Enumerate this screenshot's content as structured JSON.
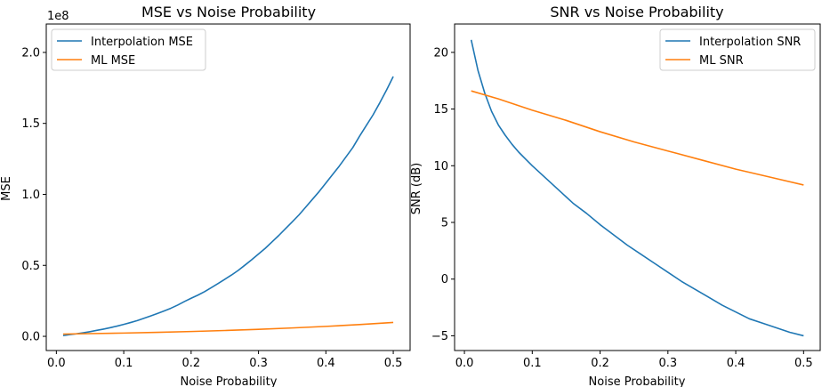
{
  "colors": {
    "series1": "#1f77b4",
    "series2": "#ff7f0e"
  },
  "chart_data": [
    {
      "type": "line",
      "title": "MSE vs Noise Probability",
      "xlabel": "Noise Probability",
      "ylabel": "MSE",
      "offset_label": "1e8",
      "xlim": [
        -0.015,
        0.525
      ],
      "ylim": [
        -0.1,
        2.2
      ],
      "xticks": [
        0.0,
        0.1,
        0.2,
        0.3,
        0.4,
        0.5
      ],
      "xtick_labels": [
        "0.0",
        "0.1",
        "0.2",
        "0.3",
        "0.4",
        "0.5"
      ],
      "yticks": [
        0.0,
        0.5,
        1.0,
        1.5,
        2.0
      ],
      "ytick_labels": [
        "0.0",
        "0.5",
        "1.0",
        "1.5",
        "2.0"
      ],
      "legend_position": "upper-left",
      "grid": false,
      "series": [
        {
          "name": "Interpolation MSE",
          "color": "#1f77b4",
          "x": [
            0.01,
            0.02,
            0.03,
            0.04,
            0.05,
            0.06,
            0.07,
            0.08,
            0.09,
            0.1,
            0.11,
            0.12,
            0.13,
            0.14,
            0.15,
            0.16,
            0.17,
            0.18,
            0.19,
            0.2,
            0.21,
            0.22,
            0.23,
            0.24,
            0.25,
            0.26,
            0.27,
            0.28,
            0.29,
            0.3,
            0.31,
            0.32,
            0.33,
            0.34,
            0.35,
            0.36,
            0.37,
            0.38,
            0.39,
            0.4,
            0.41,
            0.42,
            0.43,
            0.44,
            0.45,
            0.46,
            0.47,
            0.48,
            0.49,
            0.5
          ],
          "values": [
            0.005,
            0.012,
            0.018,
            0.025,
            0.033,
            0.042,
            0.051,
            0.061,
            0.072,
            0.084,
            0.097,
            0.111,
            0.127,
            0.144,
            0.161,
            0.179,
            0.198,
            0.22,
            0.245,
            0.268,
            0.29,
            0.315,
            0.343,
            0.372,
            0.402,
            0.432,
            0.465,
            0.502,
            0.54,
            0.58,
            0.62,
            0.665,
            0.71,
            0.758,
            0.806,
            0.855,
            0.91,
            0.965,
            1.02,
            1.08,
            1.14,
            1.2,
            1.265,
            1.33,
            1.41,
            1.485,
            1.56,
            1.645,
            1.735,
            1.83
          ]
        },
        {
          "name": "ML MSE",
          "color": "#ff7f0e",
          "x": [
            0.01,
            0.05,
            0.1,
            0.15,
            0.2,
            0.25,
            0.3,
            0.35,
            0.4,
            0.45,
            0.5
          ],
          "values": [
            0.016,
            0.019,
            0.023,
            0.028,
            0.034,
            0.041,
            0.049,
            0.059,
            0.07,
            0.083,
            0.098
          ]
        }
      ]
    },
    {
      "type": "line",
      "title": "SNR vs Noise Probability",
      "xlabel": "Noise Probability",
      "ylabel": "SNR (dB)",
      "xlim": [
        -0.0145,
        0.5245
      ],
      "ylim": [
        -6.3,
        22.5
      ],
      "xticks": [
        0.0,
        0.1,
        0.2,
        0.3,
        0.4,
        0.5
      ],
      "xtick_labels": [
        "0.0",
        "0.1",
        "0.2",
        "0.3",
        "0.4",
        "0.5"
      ],
      "yticks": [
        -5,
        0,
        5,
        10,
        15,
        20
      ],
      "ytick_labels": [
        "−5",
        "0",
        "5",
        "10",
        "15",
        "20"
      ],
      "legend_position": "upper-right",
      "grid": false,
      "series": [
        {
          "name": "Interpolation SNR",
          "color": "#1f77b4",
          "x": [
            0.01,
            0.02,
            0.03,
            0.04,
            0.05,
            0.06,
            0.07,
            0.08,
            0.09,
            0.1,
            0.12,
            0.14,
            0.16,
            0.18,
            0.2,
            0.22,
            0.24,
            0.26,
            0.28,
            0.3,
            0.32,
            0.34,
            0.36,
            0.38,
            0.4,
            0.42,
            0.44,
            0.46,
            0.48,
            0.5
          ],
          "values": [
            21.1,
            18.4,
            16.4,
            14.8,
            13.6,
            12.7,
            11.9,
            11.2,
            10.6,
            10.0,
            8.9,
            7.8,
            6.7,
            5.8,
            4.8,
            3.9,
            3.0,
            2.2,
            1.4,
            0.6,
            -0.2,
            -0.9,
            -1.6,
            -2.3,
            -2.9,
            -3.5,
            -3.9,
            -4.3,
            -4.7,
            -5.0
          ]
        },
        {
          "name": "ML SNR",
          "color": "#ff7f0e",
          "x": [
            0.01,
            0.05,
            0.1,
            0.15,
            0.2,
            0.25,
            0.3,
            0.35,
            0.4,
            0.45,
            0.5
          ],
          "values": [
            16.6,
            15.9,
            14.9,
            14.0,
            13.0,
            12.1,
            11.3,
            10.5,
            9.7,
            9.0,
            8.3
          ]
        }
      ]
    }
  ]
}
